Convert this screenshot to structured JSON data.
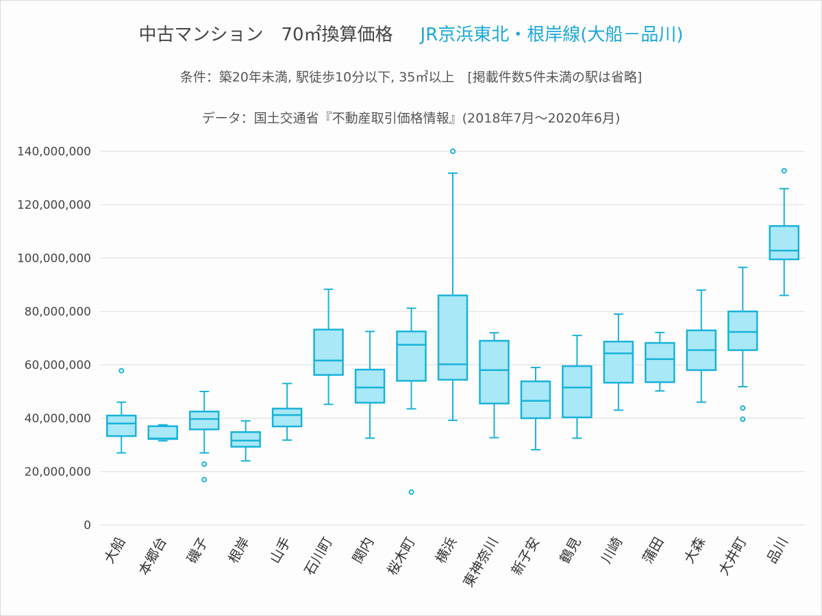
{
  "header": {
    "title_main": "中古マンション　70㎡換算価格",
    "title_line": "JR京浜東北・根岸線(大船－品川)",
    "subtitle": "条件：築20年未満, 駅徒歩10分以下, 35㎡以上　[掲載件数5件未満の駅は省略]",
    "source": "データ：国土交通省『不動産取引価格情報』(2018年7月～2020年6月)"
  },
  "colors": {
    "box_fill": "#a8e8f7",
    "box_stroke": "#19b2d8",
    "grid": "#dcdcdc",
    "title_accent": "#1aa8d8"
  },
  "chart_data": {
    "type": "boxplot",
    "ylim": [
      0,
      140000000
    ],
    "yticks": [
      0,
      20000000,
      40000000,
      60000000,
      80000000,
      100000000,
      120000000,
      140000000
    ],
    "ytick_labels": [
      "0",
      "20,000,000",
      "40,000,000",
      "60,000,000",
      "80,000,000",
      "100,000,000",
      "120,000,000",
      "140,000,000"
    ],
    "grid": true,
    "categories": [
      "大船",
      "本郷台",
      "磯子",
      "根岸",
      "山手",
      "石川町",
      "関内",
      "桜木町",
      "横浜",
      "東神奈川",
      "新子安",
      "鶴見",
      "川崎",
      "蒲田",
      "大森",
      "大井町",
      "品川"
    ],
    "boxes": [
      {
        "min": 27000000,
        "q1": 33300000,
        "median": 38000000,
        "q3": 41000000,
        "max": 46000000,
        "outliers": [
          57800000
        ]
      },
      {
        "min": 31500000,
        "q1": 32200000,
        "median": 32400000,
        "q3": 37000000,
        "max": 37500000,
        "outliers": []
      },
      {
        "min": 27000000,
        "q1": 35800000,
        "median": 39700000,
        "q3": 42500000,
        "max": 50000000,
        "outliers": [
          22800000,
          17000000
        ]
      },
      {
        "min": 24000000,
        "q1": 29300000,
        "median": 31600000,
        "q3": 34800000,
        "max": 39000000,
        "outliers": []
      },
      {
        "min": 31800000,
        "q1": 36900000,
        "median": 41200000,
        "q3": 43600000,
        "max": 53000000,
        "outliers": []
      },
      {
        "min": 45200000,
        "q1": 56200000,
        "median": 61600000,
        "q3": 73200000,
        "max": 88300000,
        "outliers": []
      },
      {
        "min": 32500000,
        "q1": 45800000,
        "median": 51500000,
        "q3": 58200000,
        "max": 72500000,
        "outliers": []
      },
      {
        "min": 43500000,
        "q1": 54000000,
        "median": 67500000,
        "q3": 72500000,
        "max": 81200000,
        "outliers": [
          12300000
        ]
      },
      {
        "min": 39200000,
        "q1": 54400000,
        "median": 60200000,
        "q3": 86000000,
        "max": 131800000,
        "outliers": [
          140000000
        ]
      },
      {
        "min": 32700000,
        "q1": 45500000,
        "median": 58000000,
        "q3": 69000000,
        "max": 72000000,
        "outliers": []
      },
      {
        "min": 28200000,
        "q1": 40000000,
        "median": 46500000,
        "q3": 53800000,
        "max": 59000000,
        "outliers": []
      },
      {
        "min": 32500000,
        "q1": 40300000,
        "median": 51500000,
        "q3": 59500000,
        "max": 71000000,
        "outliers": []
      },
      {
        "min": 43000000,
        "q1": 53300000,
        "median": 64300000,
        "q3": 68700000,
        "max": 79000000,
        "outliers": []
      },
      {
        "min": 50200000,
        "q1": 53500000,
        "median": 62100000,
        "q3": 68200000,
        "max": 72100000,
        "outliers": []
      },
      {
        "min": 46000000,
        "q1": 58000000,
        "median": 65500000,
        "q3": 72900000,
        "max": 88000000,
        "outliers": []
      },
      {
        "min": 51800000,
        "q1": 65500000,
        "median": 72300000,
        "q3": 80000000,
        "max": 96500000,
        "outliers": [
          43800000,
          39600000
        ]
      },
      {
        "min": 86000000,
        "q1": 99500000,
        "median": 102800000,
        "q3": 112000000,
        "max": 126000000,
        "outliers": [
          132700000
        ]
      }
    ]
  }
}
